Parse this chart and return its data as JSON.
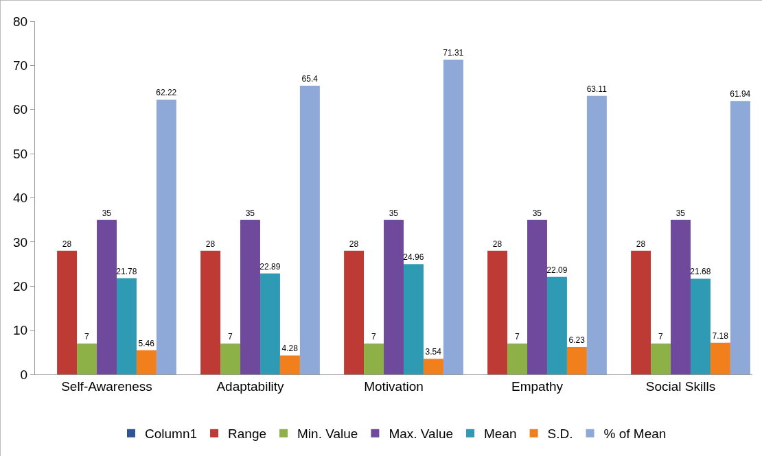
{
  "chart_data": {
    "type": "bar",
    "categories": [
      "Self-Awareness",
      "Adaptability",
      "Motivation",
      "Empathy",
      "Social Skills"
    ],
    "series": [
      {
        "name": "Column1",
        "color": "#2f5597",
        "values": [
          null,
          null,
          null,
          null,
          null
        ]
      },
      {
        "name": "Range",
        "color": "#be3a34",
        "values": [
          28,
          28,
          28,
          28,
          28
        ]
      },
      {
        "name": "Min. Value",
        "color": "#8db146",
        "values": [
          7,
          7,
          7,
          7,
          7
        ]
      },
      {
        "name": "Max. Value",
        "color": "#6f4a9c",
        "values": [
          35,
          35,
          35,
          35,
          35
        ]
      },
      {
        "name": "Mean",
        "color": "#2e9ab3",
        "values": [
          21.78,
          22.89,
          24.96,
          22.09,
          21.68
        ]
      },
      {
        "name": "S.D.",
        "color": "#f07f1c",
        "values": [
          5.46,
          4.28,
          3.54,
          6.23,
          7.18
        ]
      },
      {
        "name": "% of Mean",
        "color": "#8ea9d8",
        "values": [
          62.22,
          65.4,
          71.31,
          63.11,
          61.94
        ]
      }
    ],
    "ylim": [
      0,
      80
    ],
    "yticks": [
      0,
      10,
      20,
      30,
      40,
      50,
      60,
      70,
      80
    ],
    "grid": false,
    "data_labels": true,
    "legend": "bottom"
  }
}
